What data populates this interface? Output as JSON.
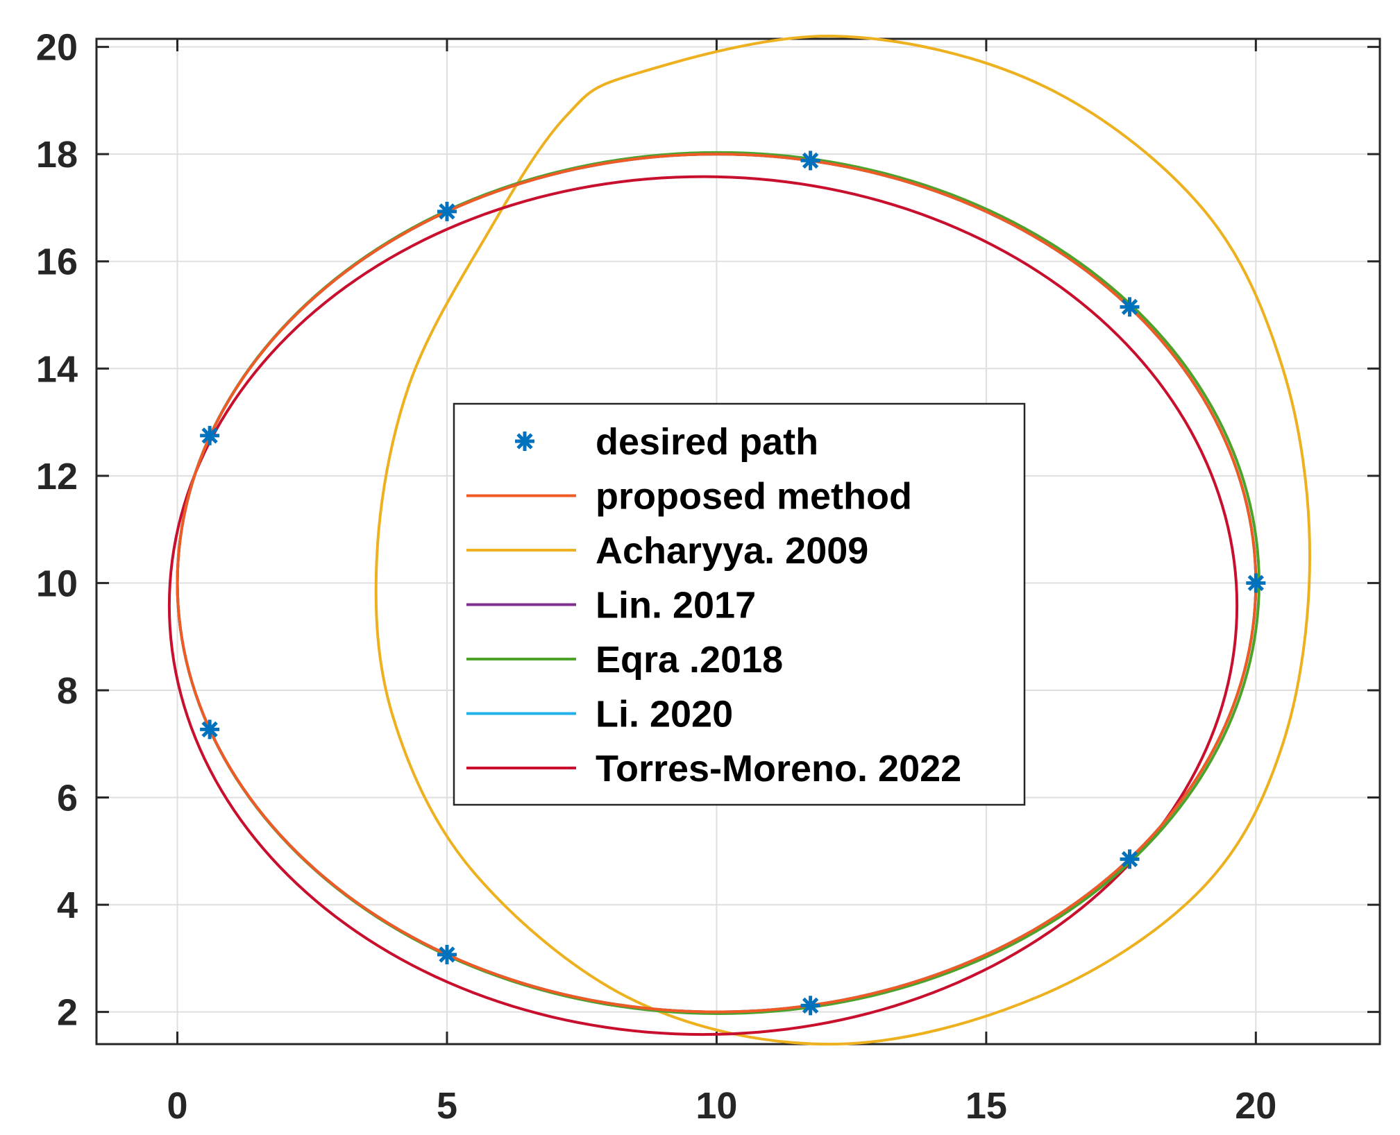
{
  "chart_data": {
    "type": "line",
    "title": "",
    "xlabel": "",
    "ylabel": "",
    "xlim": [
      -1.5,
      22.3
    ],
    "ylim": [
      1.4,
      20.15
    ],
    "xticks": [
      0,
      5,
      10,
      15,
      20
    ],
    "yticks": [
      2,
      4,
      6,
      8,
      10,
      12,
      14,
      16,
      18,
      20
    ],
    "xtick_labels": [
      "0",
      "5",
      "10",
      "15",
      "20"
    ],
    "ytick_labels": [
      "2",
      "4",
      "6",
      "8",
      "10",
      "12",
      "14",
      "16",
      "18",
      "20"
    ],
    "grid": true,
    "legend_position": "center",
    "series": [
      {
        "name": "desired path",
        "kind": "markers",
        "marker": "asterisk",
        "color": "#0072BD",
        "x": [
          20.0,
          17.66,
          11.74,
          5.0,
          0.6,
          0.6,
          5.0,
          11.74,
          17.66
        ],
        "y": [
          10.0,
          15.15,
          17.88,
          16.93,
          12.75,
          7.27,
          3.07,
          2.12,
          4.85
        ]
      },
      {
        "name": "proposed method",
        "kind": "line",
        "color": "#F05A23",
        "ellipse": {
          "cx": 10.0,
          "cy": 10.0,
          "rx": 10.0,
          "ry": 8.0
        }
      },
      {
        "name": "Acharyya. 2009",
        "kind": "line",
        "color": "#EDB120",
        "x": [
          12.2,
          16.0,
          19.0,
          20.5,
          21.0,
          20.5,
          19.0,
          16.0,
          12.2,
          8.5,
          5.5,
          4.0,
          3.7,
          4.3,
          5.8,
          7.2,
          8.5,
          12.2
        ],
        "y": [
          20.2,
          19.3,
          17.0,
          14.0,
          10.5,
          7.0,
          4.3,
          2.3,
          1.4,
          2.2,
          4.6,
          7.5,
          10.5,
          13.7,
          16.6,
          18.7,
          19.5,
          20.2
        ]
      },
      {
        "name": "Lin. 2017",
        "kind": "line",
        "color": "#7E2F8E",
        "ellipse": {
          "cx": 10.0,
          "cy": 10.0,
          "rx": 10.0,
          "ry": 8.0
        }
      },
      {
        "name": "Eqra .2018",
        "kind": "line",
        "color": "#4DA22A",
        "ellipse": {
          "cx": 10.03,
          "cy": 10.0,
          "rx": 10.03,
          "ry": 8.03
        }
      },
      {
        "name": "Li. 2020",
        "kind": "line",
        "color": "#22B0E8",
        "ellipse": {
          "cx": 10.0,
          "cy": 10.0,
          "rx": 10.0,
          "ry": 8.0
        }
      },
      {
        "name": "Torres-Moreno. 2022",
        "kind": "line",
        "color": "#C8102E",
        "ellipse": {
          "cx": 9.75,
          "cy": 9.58,
          "rx": 9.9,
          "ry": 8.0
        }
      }
    ]
  }
}
